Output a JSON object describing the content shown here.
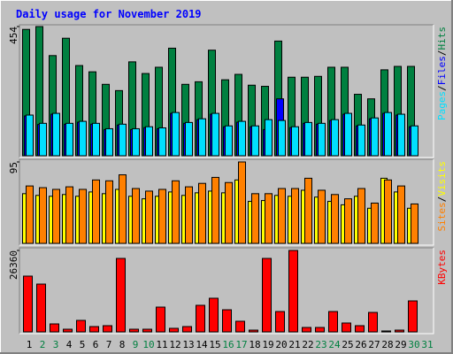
{
  "chart_data": [
    {
      "type": "bar",
      "title": "Daily usage for November 2019",
      "ylim": [
        0,
        454
      ],
      "yticks": [
        454
      ],
      "legend_separator": "/",
      "series": [
        {
          "name": "Hits",
          "color": "#008040",
          "values": [
            444,
            454,
            352,
            413,
            317,
            295,
            251,
            229,
            330,
            289,
            311,
            378,
            251,
            260,
            371,
            267,
            286,
            248,
            244,
            403,
            276,
            276,
            279,
            311,
            311,
            216,
            200,
            302,
            314,
            314,
            null
          ]
        },
        {
          "name": "Files",
          "color": "#0000ff",
          "values": [
            140,
            110,
            146,
            111,
            118,
            111,
            92,
            108,
            92,
            99,
            95,
            149,
            114,
            127,
            146,
            102,
            118,
            102,
            92,
            200,
            99,
            114,
            111,
            124,
            146,
            105,
            130,
            149,
            143,
            102,
            null
          ]
        },
        {
          "name": "Pages",
          "color": "#00e0ff",
          "values": [
            143,
            114,
            149,
            114,
            121,
            114,
            95,
            111,
            95,
            102,
            98,
            152,
            117,
            130,
            149,
            105,
            121,
            105,
            127,
            124,
            102,
            117,
            114,
            127,
            149,
            108,
            133,
            152,
            146,
            105,
            null
          ]
        }
      ]
    },
    {
      "type": "bar",
      "ylim": [
        0,
        95
      ],
      "yticks": [
        95
      ],
      "legend_separator": "/",
      "series": [
        {
          "name": "Visits",
          "color": "#ffff00",
          "values": [
            58,
            56,
            55,
            57,
            55,
            60,
            58,
            63,
            55,
            52,
            55,
            60,
            56,
            59,
            61,
            59,
            74,
            49,
            50,
            56,
            55,
            62,
            54,
            49,
            45,
            55,
            41,
            76,
            60,
            41,
            null
          ]
        },
        {
          "name": "Sites",
          "color": "#ff8000",
          "values": [
            67,
            65,
            63,
            66,
            63,
            74,
            73,
            80,
            64,
            61,
            63,
            73,
            66,
            70,
            77,
            71,
            95,
            58,
            58,
            64,
            64,
            76,
            62,
            57,
            52,
            64,
            47,
            74,
            67,
            46,
            null
          ]
        }
      ]
    },
    {
      "type": "bar",
      "ylim": [
        0,
        26360
      ],
      "yticks": [
        26360
      ],
      "categories": [
        "1",
        "2",
        "3",
        "4",
        "5",
        "6",
        "7",
        "8",
        "9",
        "10",
        "11",
        "12",
        "13",
        "14",
        "15",
        "16",
        "17",
        "18",
        "19",
        "20",
        "21",
        "22",
        "23",
        "24",
        "25",
        "26",
        "27",
        "28",
        "29",
        "30",
        "31"
      ],
      "category_colors": [
        "#000000",
        "#008040",
        "#008040",
        "#000000",
        "#000000",
        "#000000",
        "#000000",
        "#000000",
        "#008040",
        "#008040",
        "#000000",
        "#000000",
        "#000000",
        "#000000",
        "#000000",
        "#008040",
        "#008040",
        "#000000",
        "#000000",
        "#000000",
        "#000000",
        "#000000",
        "#008040",
        "#008040",
        "#000000",
        "#000000",
        "#000000",
        "#000000",
        "#000000",
        "#008040",
        "#008040"
      ],
      "series": [
        {
          "name": "KBytes",
          "color": "#ff0000",
          "values": [
            18050,
            15470,
            2580,
            860,
            3720,
            1720,
            2010,
            23780,
            860,
            860,
            8020,
            1150,
            1720,
            8600,
            10890,
            7160,
            3440,
            570,
            23780,
            6590,
            26360,
            1430,
            1430,
            6590,
            2870,
            2010,
            6300,
            290,
            570,
            10030,
            null
          ]
        }
      ]
    }
  ]
}
